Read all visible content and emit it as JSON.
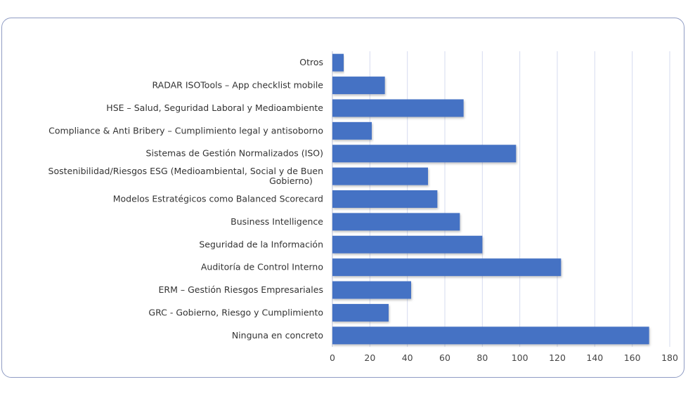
{
  "chart_data": {
    "type": "bar",
    "orientation": "horizontal",
    "title": "",
    "xlabel": "",
    "ylabel": "",
    "categories": [
      "Otros",
      "RADAR ISOTools – App checklist mobile",
      "HSE – Salud, Seguridad Laboral y Medioambiente",
      "Compliance & Anti Bribery – Cumplimiento legal y antisoborno",
      "Sistemas de Gestión Normalizados (ISO)",
      "Sostenibilidad/Riesgos ESG (Medioambiental, Social y de Buen Gobierno)",
      "Modelos Estratégicos como Balanced Scorecard",
      "Business Intelligence",
      "Seguridad de la Información",
      "Auditoría de Control Interno",
      "ERM – Gestión Riesgos Empresariales",
      "GRC - Gobierno, Riesgo y Cumplimiento",
      "Ninguna en concreto"
    ],
    "values": [
      6,
      28,
      70,
      21,
      98,
      51,
      56,
      68,
      80,
      122,
      42,
      30,
      169
    ],
    "xlim": [
      0,
      180
    ],
    "xticks": [
      0,
      20,
      40,
      60,
      80,
      100,
      120,
      140,
      160,
      180
    ],
    "grid": "vertical",
    "legend": "none",
    "bar_color": "#4472c4",
    "grid_color": "#d6dbef"
  }
}
